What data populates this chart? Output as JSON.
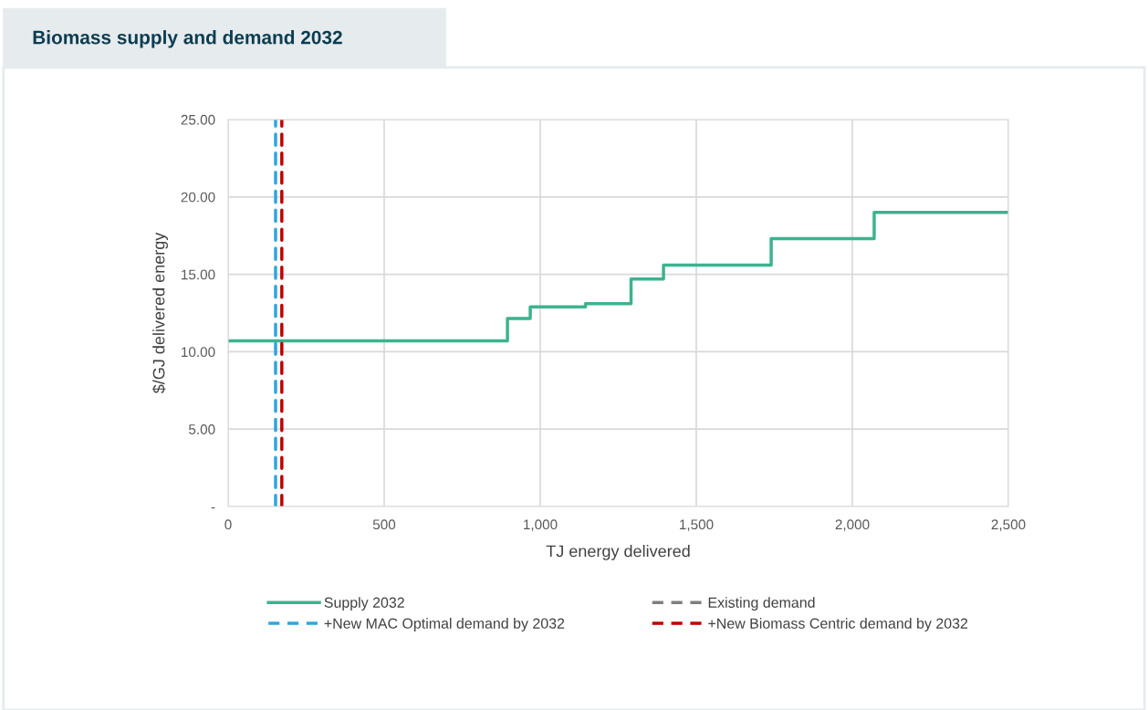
{
  "chart_data": {
    "type": "step",
    "title": "Biomass supply and demand 2032",
    "xlabel": "TJ energy delivered",
    "ylabel": "$/GJ delivered energy",
    "xlim": [
      0,
      2500
    ],
    "xticks": [
      0,
      500,
      {
        "value": 1000,
        "label": "1,000"
      },
      {
        "value": 1500,
        "label": "1,500"
      },
      {
        "value": 2000,
        "label": "2,000"
      },
      {
        "value": 2500,
        "label": "2,500"
      }
    ],
    "ylim": [
      0,
      25
    ],
    "yticks": [
      {
        "value": 0,
        "label": "-"
      },
      {
        "value": 5,
        "label": "5.00"
      },
      {
        "value": 10,
        "label": "10.00"
      },
      {
        "value": 15,
        "label": "15.00"
      },
      {
        "value": 20,
        "label": "20.00"
      },
      {
        "value": 25,
        "label": "25.00"
      }
    ],
    "grid": true,
    "legend": "bottom",
    "series": [
      {
        "name": "Supply 2032",
        "color": "#3cb38f",
        "line_style": "solid",
        "x": [
          0,
          895,
          968,
          1145,
          1291,
          1395,
          1740,
          2070,
          2500
        ],
        "values": [
          10.7,
          12.15,
          12.9,
          13.1,
          14.7,
          15.6,
          17.3,
          19.0,
          19.0
        ]
      },
      {
        "name": "Existing demand",
        "type": "line",
        "color": "#7f7f7f",
        "line_style": "dashed",
        "x": [
          null,
          null
        ],
        "values": [
          null,
          null
        ]
      },
      {
        "name": "+New MAC Optimal demand by 2032",
        "type": "line",
        "color": "#2ea6dd",
        "line_style": "dashed",
        "x": [
          152,
          152
        ],
        "values": [
          0,
          25
        ]
      },
      {
        "name": "+New Biomass Centric demand by 2032",
        "type": "line",
        "color": "#c00000",
        "line_style": "dashed",
        "x": [
          172,
          172
        ],
        "values": [
          0,
          25
        ]
      }
    ]
  }
}
